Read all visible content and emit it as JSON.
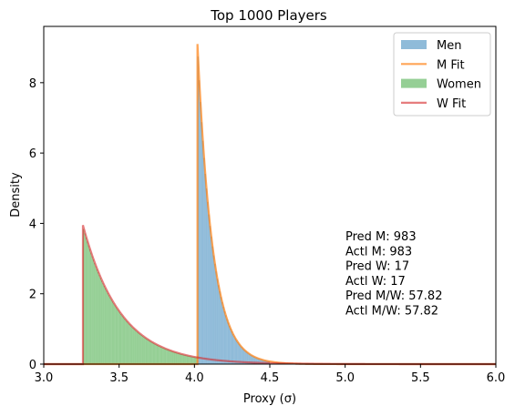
{
  "chart_data": {
    "type": "histogram",
    "title": "Top 1000 Players",
    "xlabel": "Proxy (σ)",
    "ylabel": "Density",
    "xlim": [
      3.0,
      6.0
    ],
    "ylim": [
      0,
      9.6
    ],
    "xticks": [
      "3.0",
      "3.5",
      "4.0",
      "4.5",
      "5.0",
      "5.5",
      "6.0"
    ],
    "yticks": [
      "0",
      "2",
      "4",
      "6",
      "8"
    ],
    "grid": false,
    "legend_position": "top-right",
    "series": [
      {
        "name": "Men",
        "kind": "histogram",
        "color": "#1f77b4",
        "opacity": 0.5,
        "start": 4.02,
        "peak": 9.1,
        "decay": 0.1,
        "end": 4.5
      },
      {
        "name": "M Fit",
        "kind": "line",
        "color": "#ff7f0e",
        "opacity": 0.7,
        "start": 4.02,
        "peak": 9.1,
        "decay": 0.1
      },
      {
        "name": "Women",
        "kind": "histogram",
        "color": "#2ca02c",
        "opacity": 0.5,
        "start": 3.26,
        "peak": 3.9,
        "decay": 0.25,
        "end": 4.02
      },
      {
        "name": "W Fit",
        "kind": "line",
        "color": "#d62728",
        "opacity": 0.6,
        "start": 3.26,
        "peak": 3.95,
        "decay": 0.25
      }
    ],
    "annotations": [
      "Pred M: 983",
      "Actl M: 983",
      "Pred W: 17",
      "Actl W: 17",
      "Pred M/W: 57.82",
      "Actl M/W: 57.82"
    ]
  }
}
